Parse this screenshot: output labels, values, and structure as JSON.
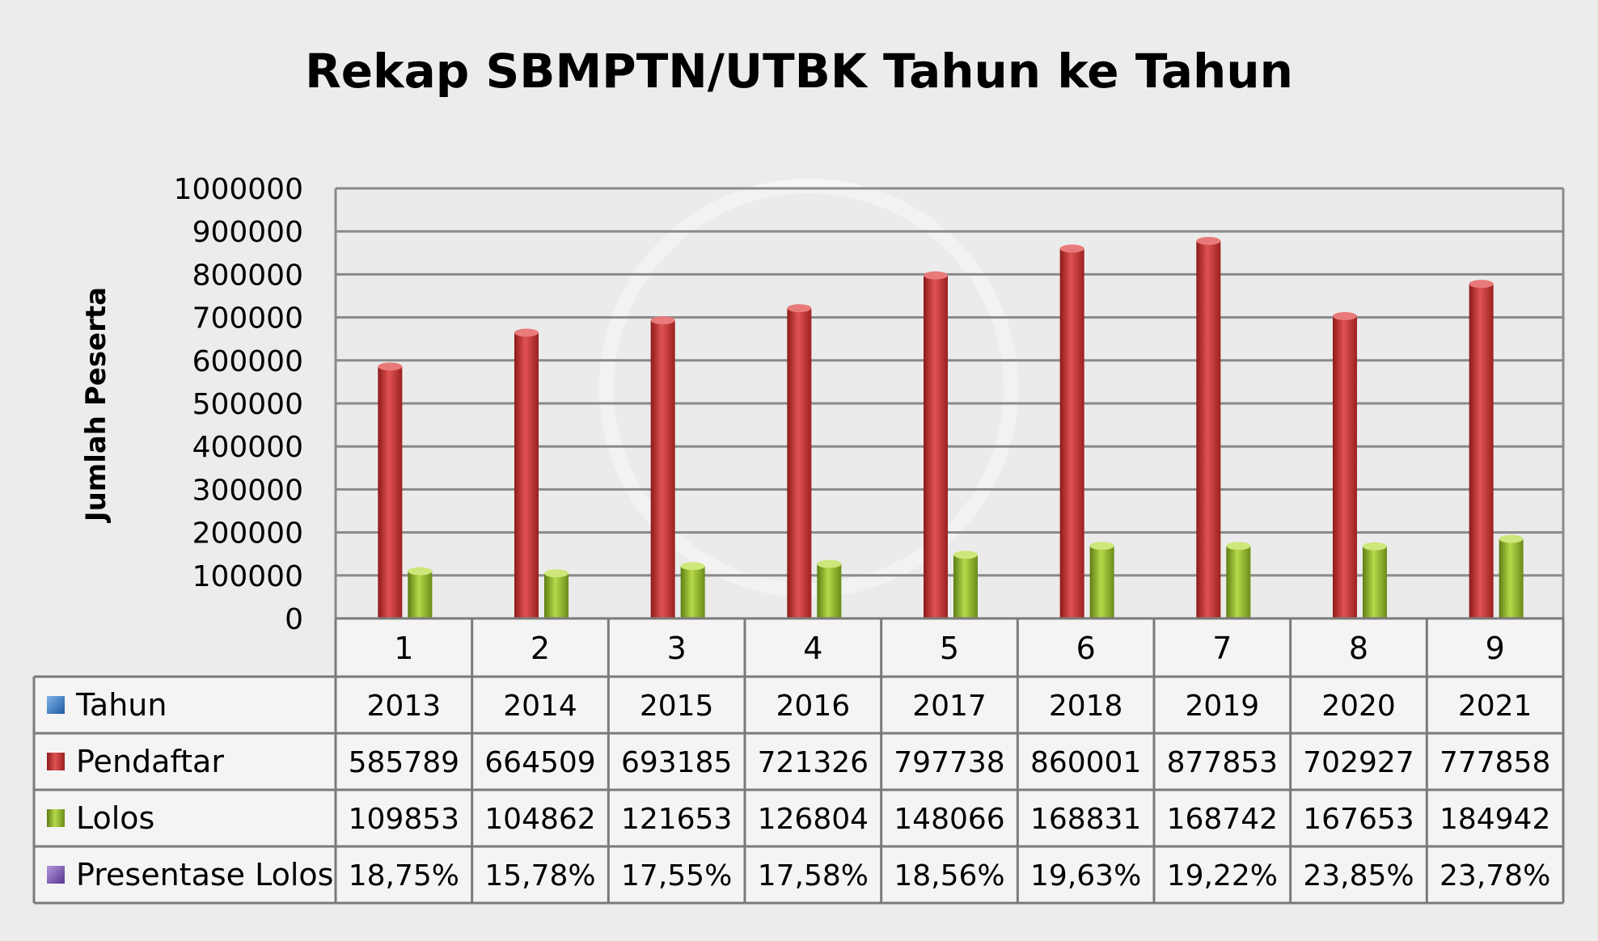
{
  "chart_data": {
    "type": "bar",
    "title": "Rekap SBMPTN/UTBK Tahun ke Tahun",
    "ylabel": "Jumlah Peserta",
    "xlabel": "",
    "ylim": [
      0,
      1000000
    ],
    "yticks": [
      0,
      100000,
      200000,
      300000,
      400000,
      500000,
      600000,
      700000,
      800000,
      900000,
      1000000
    ],
    "grid": true,
    "legend": "table-left",
    "categories": [
      "1",
      "2",
      "3",
      "4",
      "5",
      "6",
      "7",
      "8",
      "9"
    ],
    "series": [
      {
        "name": "Tahun",
        "color": "#3f7fc8",
        "values": [
          2013,
          2014,
          2015,
          2016,
          2017,
          2018,
          2019,
          2020,
          2021
        ],
        "labels": [
          "2013",
          "2014",
          "2015",
          "2016",
          "2017",
          "2018",
          "2019",
          "2020",
          "2021"
        ]
      },
      {
        "name": "Pendaftar",
        "color": "#c83232",
        "values": [
          585789,
          664509,
          693185,
          721326,
          797738,
          860001,
          877853,
          702927,
          777858
        ],
        "labels": [
          "585789",
          "664509",
          "693185",
          "721326",
          "797738",
          "860001",
          "877853",
          "702927",
          "777858"
        ]
      },
      {
        "name": "Lolos",
        "color": "#8ab22a",
        "values": [
          109853,
          104862,
          121653,
          126804,
          148066,
          168831,
          168742,
          167653,
          184942
        ],
        "labels": [
          "109853",
          "104862",
          "121653",
          "126804",
          "148066",
          "168831",
          "168742",
          "167653",
          "184942"
        ]
      },
      {
        "name": "Presentase Lolos",
        "color": "#7a56b0",
        "values": [
          18.75,
          15.78,
          17.55,
          17.58,
          18.56,
          19.63,
          19.22,
          23.85,
          23.78
        ],
        "labels": [
          "18,75%",
          "15,78%",
          "17,55%",
          "17,58%",
          "18,56%",
          "19,63%",
          "19,22%",
          "23,85%",
          "23,78%"
        ]
      }
    ]
  }
}
